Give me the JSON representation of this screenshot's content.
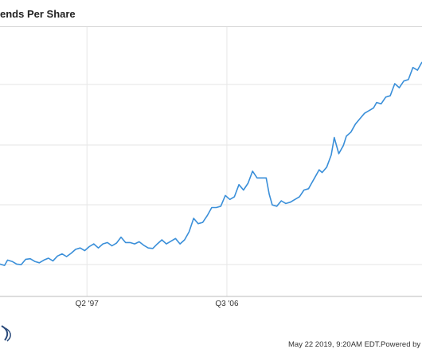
{
  "chart_data": {
    "type": "line",
    "title": "ends Per Share",
    "x_tick_labels": [
      {
        "label": "Q2 '97",
        "t": 1997.25
      },
      {
        "label": "Q3 '06",
        "t": 2006.5
      }
    ],
    "x_range": [
      1991.5,
      2019.4
    ],
    "y_range": [
      0,
      100
    ],
    "grid": true,
    "legend": "none",
    "line_color": "#3a8fd9",
    "series": [
      {
        "values": [
          [
            1991.5,
            12.0
          ],
          [
            1991.8,
            11.5
          ],
          [
            1992.0,
            13.5
          ],
          [
            1992.3,
            13.0
          ],
          [
            1992.6,
            12.0
          ],
          [
            1992.9,
            11.8
          ],
          [
            1993.2,
            13.8
          ],
          [
            1993.5,
            14.0
          ],
          [
            1993.8,
            13.0
          ],
          [
            1994.1,
            12.5
          ],
          [
            1994.4,
            13.5
          ],
          [
            1994.7,
            14.2
          ],
          [
            1995.0,
            13.2
          ],
          [
            1995.3,
            15.0
          ],
          [
            1995.6,
            15.8
          ],
          [
            1995.9,
            14.8
          ],
          [
            1996.2,
            16.0
          ],
          [
            1996.5,
            17.5
          ],
          [
            1996.8,
            18.0
          ],
          [
            1997.1,
            17.0
          ],
          [
            1997.4,
            18.5
          ],
          [
            1997.7,
            19.5
          ],
          [
            1998.0,
            18.0
          ],
          [
            1998.3,
            19.5
          ],
          [
            1998.6,
            20.0
          ],
          [
            1998.9,
            18.8
          ],
          [
            1999.2,
            19.8
          ],
          [
            1999.5,
            22.0
          ],
          [
            1999.8,
            20.0
          ],
          [
            2000.1,
            20.0
          ],
          [
            2000.4,
            19.5
          ],
          [
            2000.7,
            20.3
          ],
          [
            2001.0,
            19.0
          ],
          [
            2001.3,
            18.0
          ],
          [
            2001.6,
            17.8
          ],
          [
            2001.9,
            19.5
          ],
          [
            2002.2,
            21.0
          ],
          [
            2002.5,
            19.5
          ],
          [
            2002.8,
            20.5
          ],
          [
            2003.1,
            21.5
          ],
          [
            2003.4,
            19.5
          ],
          [
            2003.7,
            21.0
          ],
          [
            2004.0,
            24.0
          ],
          [
            2004.3,
            29.0
          ],
          [
            2004.6,
            27.0
          ],
          [
            2004.9,
            27.5
          ],
          [
            2005.2,
            30.0
          ],
          [
            2005.5,
            33.0
          ],
          [
            2005.8,
            33.0
          ],
          [
            2006.1,
            33.5
          ],
          [
            2006.4,
            37.5
          ],
          [
            2006.7,
            36.0
          ],
          [
            2007.0,
            37.0
          ],
          [
            2007.3,
            41.5
          ],
          [
            2007.6,
            39.5
          ],
          [
            2007.9,
            42.0
          ],
          [
            2008.2,
            46.5
          ],
          [
            2008.5,
            44.0
          ],
          [
            2008.8,
            44.0
          ],
          [
            2009.1,
            44.0
          ],
          [
            2009.3,
            38.0
          ],
          [
            2009.5,
            34.0
          ],
          [
            2009.8,
            33.5
          ],
          [
            2010.1,
            35.5
          ],
          [
            2010.4,
            34.5
          ],
          [
            2010.7,
            35.0
          ],
          [
            2011.0,
            36.0
          ],
          [
            2011.3,
            37.0
          ],
          [
            2011.6,
            39.5
          ],
          [
            2011.9,
            40.0
          ],
          [
            2012.1,
            42.0
          ],
          [
            2012.3,
            44.0
          ],
          [
            2012.6,
            47.0
          ],
          [
            2012.8,
            46.0
          ],
          [
            2013.1,
            48.0
          ],
          [
            2013.4,
            52.5
          ],
          [
            2013.6,
            59.0
          ],
          [
            2013.9,
            53.0
          ],
          [
            2014.2,
            56.0
          ],
          [
            2014.4,
            59.5
          ],
          [
            2014.7,
            61.0
          ],
          [
            2015.0,
            64.0
          ],
          [
            2015.3,
            66.0
          ],
          [
            2015.6,
            68.0
          ],
          [
            2015.9,
            69.0
          ],
          [
            2016.2,
            70.0
          ],
          [
            2016.4,
            72.0
          ],
          [
            2016.7,
            71.5
          ],
          [
            2017.0,
            74.0
          ],
          [
            2017.3,
            74.5
          ],
          [
            2017.6,
            79.0
          ],
          [
            2017.9,
            77.5
          ],
          [
            2018.2,
            80.0
          ],
          [
            2018.5,
            80.5
          ],
          [
            2018.8,
            85.0
          ],
          [
            2019.1,
            84.0
          ],
          [
            2019.4,
            87.0
          ]
        ]
      }
    ]
  },
  "footer": {
    "timestamp": "May 22 2019, 9:20AM EDT.",
    "powered_by": "Powered by"
  }
}
